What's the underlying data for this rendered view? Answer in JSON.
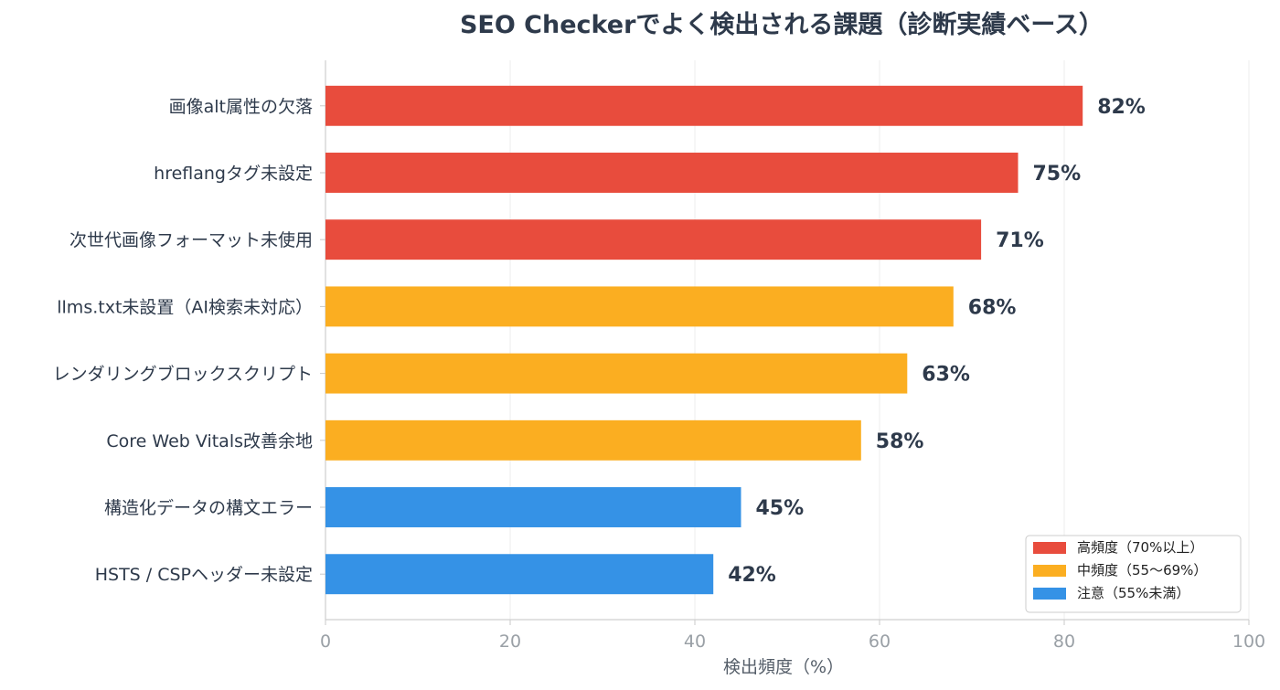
{
  "chart_data": {
    "type": "bar",
    "orientation": "horizontal",
    "title": "SEO Checkerでよく検出される課題（診断実績ベース）",
    "xlabel": "検出頻度（%）",
    "ylabel": "",
    "xlim": [
      0,
      100
    ],
    "xticks": [
      0,
      20,
      40,
      60,
      80,
      100
    ],
    "grid": "vertical",
    "categories": [
      "画像alt属性の欠落",
      "hreflangタグ未設定",
      "次世代画像フォーマット未使用",
      "llms.txt未設置（AI検索未対応）",
      "レンダリングブロックスクリプト",
      "Core Web Vitals改善余地",
      "構造化データの構文エラー",
      "HSTS / CSPヘッダー未設定"
    ],
    "values": [
      82,
      75,
      71,
      68,
      63,
      58,
      45,
      42
    ],
    "value_labels": [
      "82%",
      "75%",
      "71%",
      "68%",
      "63%",
      "58%",
      "45%",
      "42%"
    ],
    "bar_groups": [
      "high",
      "high",
      "high",
      "mid",
      "mid",
      "mid",
      "low",
      "low"
    ],
    "legend_position": "bottom-right",
    "legend": [
      {
        "key": "high",
        "label": "高頻度（70%以上）",
        "color": "#e84c3d"
      },
      {
        "key": "mid",
        "label": "中頻度（55〜69%）",
        "color": "#fbae21"
      },
      {
        "key": "low",
        "label": "注意（55%未満）",
        "color": "#3592e6"
      }
    ]
  }
}
